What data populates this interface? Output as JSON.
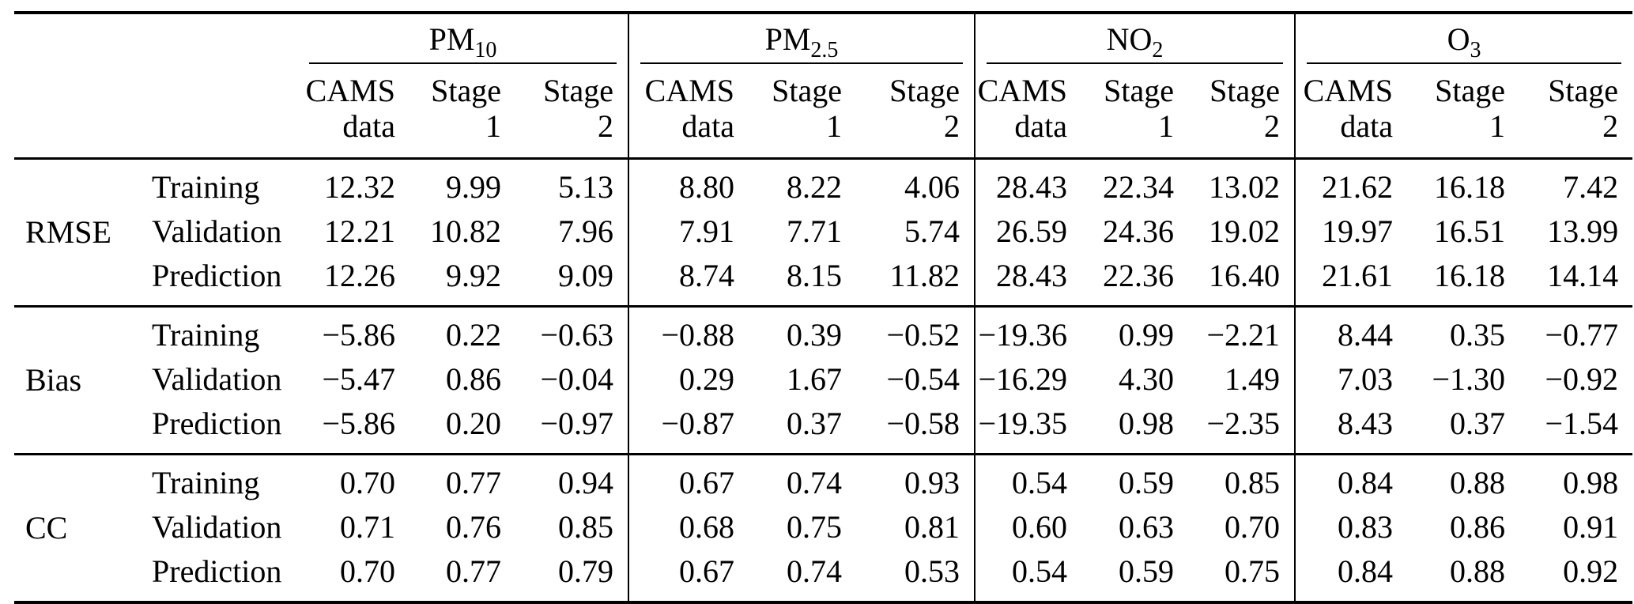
{
  "colors": {
    "background": "#ffffff",
    "text": "#000000",
    "rule": "#000000"
  },
  "table": {
    "pollutant_groups": [
      {
        "name": "PM",
        "subscript": "10"
      },
      {
        "name": "PM",
        "subscript": "2.5"
      },
      {
        "name": "NO",
        "subscript": "2"
      },
      {
        "name": "O",
        "subscript": "3"
      }
    ],
    "subheaders": {
      "cams": "CAMS\ndata",
      "stage1": "Stage\n1",
      "stage2": "Stage\n2"
    },
    "sections": [
      {
        "metric": "RMSE",
        "rows": [
          {
            "label": "Training",
            "values": [
              "12.32",
              "9.99",
              "5.13",
              "8.80",
              "8.22",
              "4.06",
              "28.43",
              "22.34",
              "13.02",
              "21.62",
              "16.18",
              "7.42"
            ]
          },
          {
            "label": "Validation",
            "values": [
              "12.21",
              "10.82",
              "7.96",
              "7.91",
              "7.71",
              "5.74",
              "26.59",
              "24.36",
              "19.02",
              "19.97",
              "16.51",
              "13.99"
            ]
          },
          {
            "label": "Prediction",
            "values": [
              "12.26",
              "9.92",
              "9.09",
              "8.74",
              "8.15",
              "11.82",
              "28.43",
              "22.36",
              "16.40",
              "21.61",
              "16.18",
              "14.14"
            ]
          }
        ]
      },
      {
        "metric": "Bias",
        "rows": [
          {
            "label": "Training",
            "values": [
              "−5.86",
              "0.22",
              "−0.63",
              "−0.88",
              "0.39",
              "−0.52",
              "−19.36",
              "0.99",
              "−2.21",
              "8.44",
              "0.35",
              "−0.77"
            ]
          },
          {
            "label": "Validation",
            "values": [
              "−5.47",
              "0.86",
              "−0.04",
              "0.29",
              "1.67",
              "−0.54",
              "−16.29",
              "4.30",
              "1.49",
              "7.03",
              "−1.30",
              "−0.92"
            ]
          },
          {
            "label": "Prediction",
            "values": [
              "−5.86",
              "0.20",
              "−0.97",
              "−0.87",
              "0.37",
              "−0.58",
              "−19.35",
              "0.98",
              "−2.35",
              "8.43",
              "0.37",
              "−1.54"
            ]
          }
        ]
      },
      {
        "metric": "CC",
        "rows": [
          {
            "label": "Training",
            "values": [
              "0.70",
              "0.77",
              "0.94",
              "0.67",
              "0.74",
              "0.93",
              "0.54",
              "0.59",
              "0.85",
              "0.84",
              "0.88",
              "0.98"
            ]
          },
          {
            "label": "Validation",
            "values": [
              "0.71",
              "0.76",
              "0.85",
              "0.68",
              "0.75",
              "0.81",
              "0.60",
              "0.63",
              "0.70",
              "0.83",
              "0.86",
              "0.91"
            ]
          },
          {
            "label": "Prediction",
            "values": [
              "0.70",
              "0.77",
              "0.79",
              "0.67",
              "0.74",
              "0.53",
              "0.54",
              "0.59",
              "0.75",
              "0.84",
              "0.88",
              "0.92"
            ]
          }
        ]
      }
    ]
  }
}
